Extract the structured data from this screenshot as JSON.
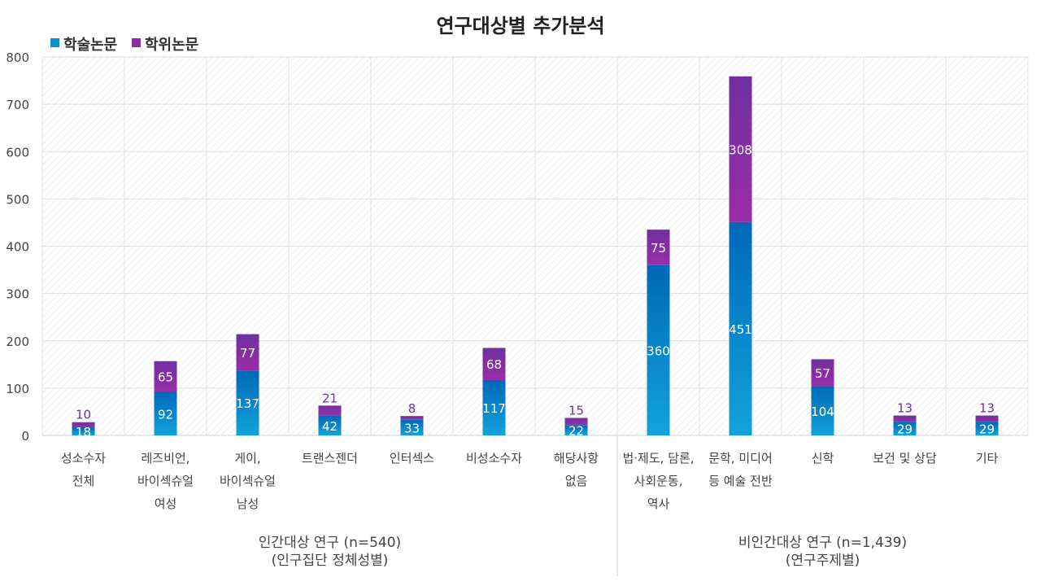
{
  "chart_data": {
    "type": "bar",
    "stacked": true,
    "title": "연구대상별 추가분석",
    "ylim": [
      0,
      800
    ],
    "yticks": [
      0,
      100,
      200,
      300,
      400,
      500,
      600,
      700,
      800
    ],
    "grid": true,
    "legend_position": "top-left",
    "categories": [
      [
        "성소수자",
        "전체"
      ],
      [
        "레즈비언,",
        "바이섹슈얼",
        "여성"
      ],
      [
        "게이,",
        "바이섹슈얼",
        "남성"
      ],
      [
        "트랜스젠더"
      ],
      [
        "인터섹스"
      ],
      [
        "비성소수자"
      ],
      [
        "해당사항",
        "없음"
      ],
      [
        "법·제도, 담론,",
        "사회운동,",
        "역사"
      ],
      [
        "문학, 미디어",
        "등 예술 전반"
      ],
      [
        "신학"
      ],
      [
        "보건 및 상담"
      ],
      [
        "기타"
      ]
    ],
    "series": [
      {
        "name": "학술논문",
        "color": "#0a8fd0",
        "values": [
          18,
          92,
          137,
          42,
          33,
          117,
          22,
          360,
          451,
          104,
          29,
          29
        ]
      },
      {
        "name": "학위논문",
        "color": "#8e2ea4",
        "values": [
          10,
          65,
          77,
          21,
          8,
          68,
          15,
          75,
          308,
          57,
          13,
          13
        ]
      }
    ],
    "groups": [
      {
        "label": [
          "인간대상 연구 (n=540)",
          "(인구집단 정체성별)"
        ],
        "count": 7
      },
      {
        "label": [
          "비인간대상 연구 (n=1,439)",
          "(연구주제별)"
        ],
        "count": 5
      }
    ]
  }
}
